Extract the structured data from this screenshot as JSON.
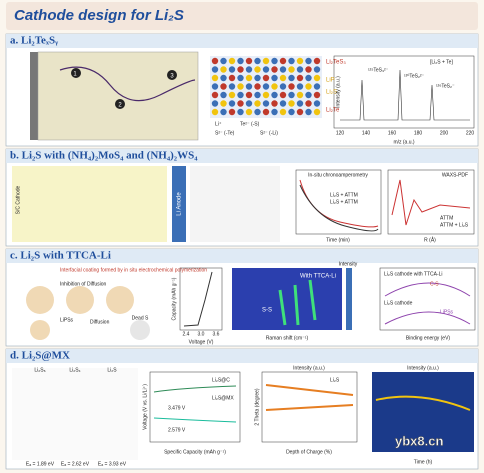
{
  "header": {
    "title": "Cathode design for Li₂S"
  },
  "panels": [
    {
      "title": "a. Li₂TeₓSᵧ",
      "labels": [
        "Li₂TeS₃",
        "LiP",
        "Li₂S",
        "Li₂Te",
        "Li⁺",
        "Te²⁻ (-S)",
        "S²⁻ (-Te)",
        "S²⁻ (-Li)",
        "[Li₂S + Te]",
        "¹²⁵TeS₃²⁻",
        "¹³⁰TeS₂²⁻",
        "¹²⁶TeS₂⁻",
        "m/z (a.u.)",
        "Intensity (a.u.)",
        "120",
        "140",
        "160",
        "180",
        "200",
        "220",
        "1",
        "2",
        "3"
      ]
    },
    {
      "title": "b. Li₂S with (NH₄)₂MoS₄ and (NH₄)₂WS₄",
      "labels": [
        "Li Anode",
        "S/C Cathode",
        "In-situ chronoamperometry",
        "Li₂S + ATTM",
        "Li₂S + ATTM",
        "Time (min)",
        "WAXS-PDF",
        "ATTM",
        "ATTM + Li₂S",
        "R (Å)"
      ]
    },
    {
      "title": "c. Li₂S with TTCA-Li",
      "labels": [
        "Interfacial coating formed by in situ electrochemical polymerization",
        "Inhibition of Diffusion",
        "LiPSs",
        "Diffusion",
        "Dead S",
        "Capacity (mAh g⁻¹)",
        "Voltage (V)",
        "2.4",
        "3.0",
        "3.6",
        "With TTCA-Li",
        "S-S",
        "Raman shift (cm⁻¹)",
        "Intensity",
        "Li₂S cathode with TTCA-Li",
        "Li₂S cathode",
        "C-S",
        "LiPSs",
        "Binding energy (eV)"
      ]
    },
    {
      "title": "d. Li₂S@MX",
      "labels": [
        "Li₂S₆",
        "Li₂S₄",
        "Li₂S",
        "Eₐ = 1.89 eV",
        "Eₐ = 2.62 eV",
        "Eₐ = 3.93 eV",
        "Li₂S@C",
        "Li₂S@MX",
        "3.479 V",
        "2.579 V",
        "Specific Capacity (mAh g⁻¹)",
        "Voltage (V vs. Li/Li⁺)",
        "Intensity (a.u.)",
        "2 Theta (degree)",
        "Depth of Charge (%)",
        "Li₂S",
        "Intensity (a.u.)",
        "Time (h)"
      ]
    }
  ],
  "watermark": "ybx8.cn"
}
